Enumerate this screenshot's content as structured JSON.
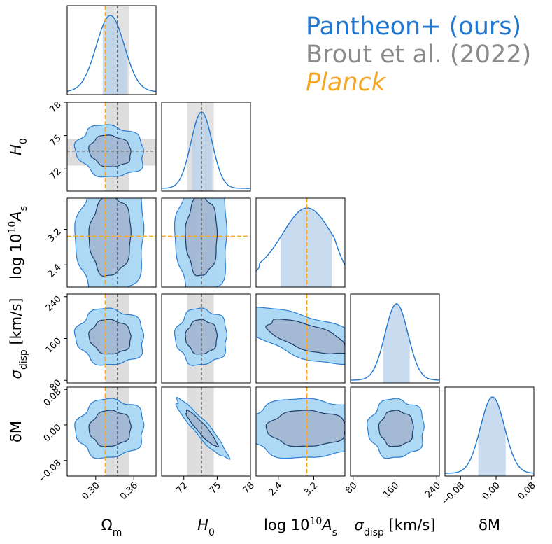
{
  "legend": {
    "ours": "Pantheon+ (ours)",
    "brout": "Brout et al. (2022)",
    "planck": "Planck"
  },
  "colors": {
    "ours": "#1f77d0",
    "ours_fill_outer": "#aad8f5",
    "ours_fill_inner": "#a3b9d4",
    "ours_dark": "#1d3d6b",
    "brout": "#8a8a8a",
    "brout_band": "#d9d9d9",
    "planck": "#f5a623"
  },
  "chart_data": {
    "type": "corner",
    "parameters": [
      {
        "name": "Omega_m",
        "label_main": "Ω",
        "label_sub": "m",
        "range": [
          0.255,
          0.395
        ],
        "ticks": [
          0.3,
          0.36
        ],
        "tick_labels": [
          "0.30",
          "0.36"
        ],
        "ours": {
          "mean": 0.323,
          "sd": 0.022,
          "ci68": [
            0.311,
            0.35
          ]
        },
        "brout": {
          "value": 0.334,
          "band": [
            0.316,
            0.352
          ]
        },
        "planck": 0.315
      },
      {
        "name": "H0",
        "label_main": "H",
        "label_sub": "0",
        "range": [
          70.0,
          78.0
        ],
        "ticks": [
          72,
          75,
          78
        ],
        "tick_labels": [
          "72",
          "75",
          "78"
        ],
        "ours": {
          "mean": 73.6,
          "sd": 0.95,
          "ci68": [
            72.7,
            74.6
          ]
        },
        "brout": {
          "value": 73.6,
          "band": [
            72.3,
            74.7
          ]
        },
        "planck": null
      },
      {
        "name": "log10As",
        "label_main": "log 10",
        "label_sup": "10",
        "label_tail": "A",
        "label_sub": "s",
        "range": [
          1.9,
          3.9
        ],
        "ticks": [
          2.4,
          3.2
        ],
        "tick_labels": [
          "2.4",
          "3.2"
        ],
        "ours": {
          "mode": 3.05,
          "ci68": [
            2.45,
            3.6
          ]
        },
        "brout": null,
        "planck": 3.044
      },
      {
        "name": "sigma_disp",
        "label_main": "σ",
        "label_sub": "disp",
        "label_tail": " [km/s]",
        "range": [
          75,
          245
        ],
        "ticks": [
          80,
          160,
          240
        ],
        "tick_labels": [
          "80",
          "160",
          "240"
        ],
        "ours": {
          "mean": 163,
          "sd": 22,
          "ci68": [
            137,
            189
          ]
        },
        "brout": null,
        "planck": null
      },
      {
        "name": "deltaM",
        "label_main": "δM",
        "range": [
          -0.115,
          0.085
        ],
        "ticks": [
          -0.08,
          0.0,
          0.08
        ],
        "tick_labels": [
          "−0.08",
          "0.00",
          "0.08"
        ],
        "ours": {
          "mean": -0.008,
          "sd": 0.027,
          "ci68": [
            -0.04,
            0.022
          ]
        },
        "brout": null,
        "planck": null
      }
    ],
    "contours": [
      {
        "x": "Omega_m",
        "y": "H0",
        "corr": -0.1
      },
      {
        "x": "Omega_m",
        "y": "log10As",
        "corr": 0.05
      },
      {
        "x": "H0",
        "y": "log10As",
        "corr": 0.0
      },
      {
        "x": "Omega_m",
        "y": "sigma_disp",
        "corr": -0.05
      },
      {
        "x": "H0",
        "y": "sigma_disp",
        "corr": 0.0
      },
      {
        "x": "log10As",
        "y": "sigma_disp",
        "corr": -0.65
      },
      {
        "x": "Omega_m",
        "y": "deltaM",
        "corr": 0.05
      },
      {
        "x": "H0",
        "y": "deltaM",
        "corr": -0.93
      },
      {
        "x": "log10As",
        "y": "deltaM",
        "corr": 0.0
      },
      {
        "x": "sigma_disp",
        "y": "deltaM",
        "corr": 0.0
      }
    ],
    "tick_labels": {
      "Omega_m": [
        "0.30",
        "0.36"
      ],
      "H0": [
        "72",
        "75",
        "78"
      ],
      "log10As": [
        "2.4",
        "3.2"
      ],
      "sigma_disp": [
        "80",
        "160",
        "240"
      ],
      "deltaM": [
        "−0.08",
        "0.00",
        "0.08"
      ]
    }
  }
}
